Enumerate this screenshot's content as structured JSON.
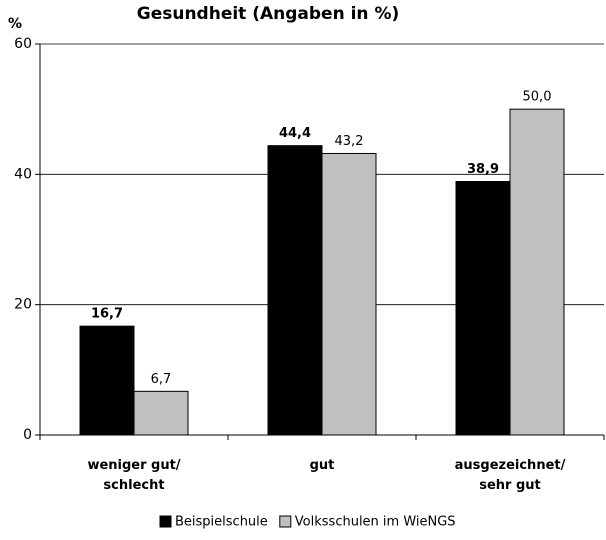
{
  "chart_data": {
    "type": "bar",
    "title": "Gesundheit (Angaben in %)",
    "y_label": "%",
    "categories": [
      [
        "weniger gut/",
        "schlecht"
      ],
      [
        "gut"
      ],
      [
        "ausgezeichnet/",
        "sehr gut"
      ]
    ],
    "series": [
      {
        "name": "Beispielschule",
        "color": "#000000",
        "values": [
          16.7,
          44.4,
          38.9
        ],
        "value_labels": [
          "16,7",
          "44,4",
          "38,9"
        ]
      },
      {
        "name": "Volksschulen im WieNGS",
        "color": "#c0c0c0",
        "values": [
          6.7,
          43.2,
          50.0
        ],
        "value_labels": [
          "6,7",
          "43,2",
          "50,0"
        ]
      }
    ],
    "ylim": [
      0,
      60
    ],
    "yticks": [
      0,
      20,
      40,
      60
    ],
    "grid": true,
    "legend": "bottom"
  }
}
